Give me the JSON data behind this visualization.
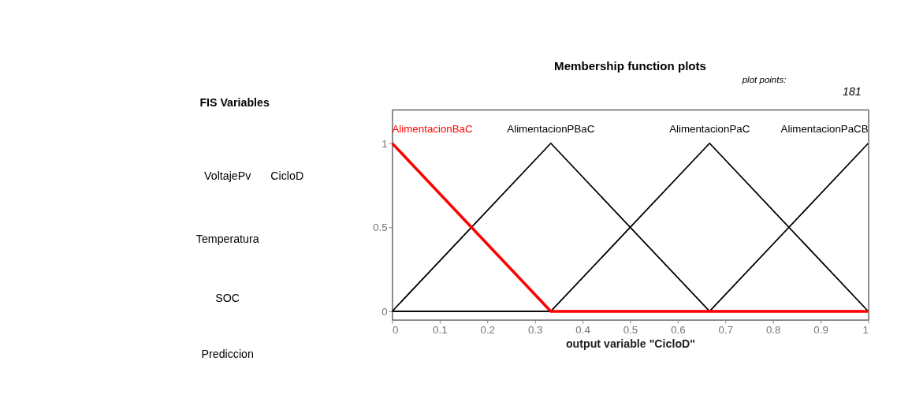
{
  "chart_data": {
    "type": "line",
    "title": "Membership function plots",
    "xlabel": "output variable \"CicloD\"",
    "xlim": [
      0,
      1
    ],
    "xticks": [
      0,
      0.1,
      0.2,
      0.3,
      0.4,
      0.5,
      0.6,
      0.7,
      0.8,
      0.9,
      1
    ],
    "ylim": [
      -0.05,
      1.2
    ],
    "yticks": [
      0,
      0.5,
      1
    ],
    "grid": false,
    "legend": false,
    "line_style": "solid",
    "series": [
      {
        "name": "AlimentacionBaC",
        "color": "#ff0000",
        "x": [
          0,
          0.3333,
          1
        ],
        "values": [
          1,
          0,
          0
        ]
      },
      {
        "name": "AlimentacionPBaC",
        "color": "#000000",
        "x": [
          0,
          0.3333,
          0.6667,
          1
        ],
        "values": [
          0,
          1,
          0,
          0
        ]
      },
      {
        "name": "AlimentacionPaC",
        "color": "#000000",
        "x": [
          0,
          0.3333,
          0.6667,
          1
        ],
        "values": [
          0,
          0,
          1,
          0
        ]
      },
      {
        "name": "AlimentacionPaCB",
        "color": "#000000",
        "x": [
          0,
          0.6667,
          1
        ],
        "values": [
          0,
          0,
          1
        ]
      }
    ],
    "annotations": [
      "FIS Variables",
      "VoltajePv",
      "CicloD",
      "Temperatura",
      "SOC",
      "Prediccion",
      "plot points:",
      "181"
    ]
  }
}
